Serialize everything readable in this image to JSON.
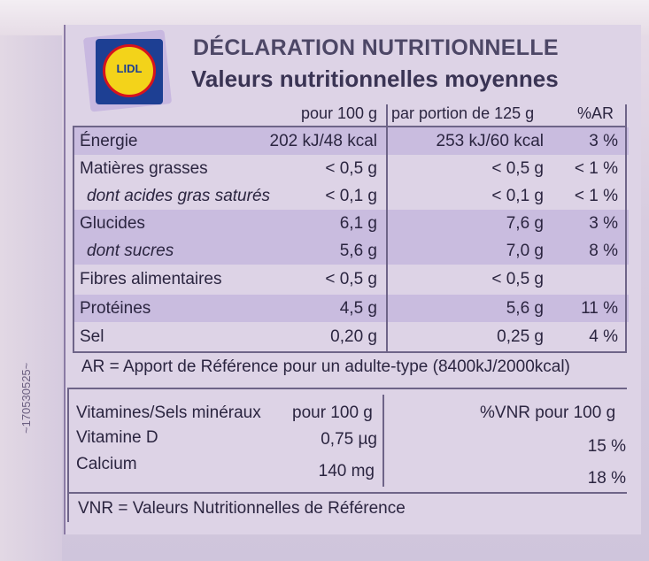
{
  "header": {
    "title": "DÉCLARATION NUTRITIONNELLE",
    "subtitle": "Valeurs nutritionnelles moyennes",
    "logo_text": "LIDL"
  },
  "columns": {
    "per100": "pour 100 g",
    "perPortion": "par portion de 125 g",
    "ar": "%AR"
  },
  "nutrients": [
    {
      "label": "Énergie",
      "per100": "202 kJ/48 kcal",
      "portion": "253 kJ/60 kcal",
      "ar": "3 %"
    },
    {
      "label": "Matières grasses",
      "per100": "< 0,5 g",
      "portion": "< 0,5 g",
      "ar": "< 1 %"
    },
    {
      "label": "dont acides gras saturés",
      "per100": "< 0,1 g",
      "portion": "< 0,1 g",
      "ar": "< 1 %"
    },
    {
      "label": "Glucides",
      "per100": "6,1 g",
      "portion": "7,6 g",
      "ar": "3 %"
    },
    {
      "label": "dont sucres",
      "per100": "5,6 g",
      "portion": "7,0 g",
      "ar": "8 %"
    },
    {
      "label": "Fibres alimentaires",
      "per100": "< 0,5 g",
      "portion": "< 0,5 g",
      "ar": ""
    },
    {
      "label": "Protéines",
      "per100": "4,5 g",
      "portion": "5,6 g",
      "ar": "11 %"
    },
    {
      "label": "Sel",
      "per100": "0,20 g",
      "portion": "0,25 g",
      "ar": "4 %"
    }
  ],
  "ar_note": "AR = Apport de Référence pour un adulte-type (8400kJ/2000kcal)",
  "vitamins": {
    "header_label": "Vitamines/Sels minéraux",
    "header_per100": "pour 100 g",
    "header_vnr": "%VNR pour 100 g",
    "rows": [
      {
        "label": "Vitamine D",
        "value": "0,75 µg",
        "vnr": "15 %"
      },
      {
        "label": "Calcium",
        "value": "140 mg",
        "vnr": "18 %"
      }
    ]
  },
  "vnr_note": "VNR = Valeurs Nutritionnelles de Référence",
  "side_code": "~170530525~"
}
